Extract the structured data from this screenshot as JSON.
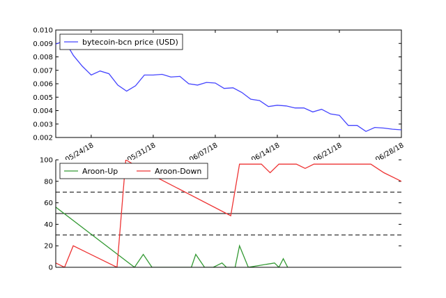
{
  "chart_data": [
    {
      "type": "line",
      "title": "",
      "xlabel": "",
      "ylabel": "",
      "ylim": [
        0.002,
        0.01
      ],
      "yticks": [
        "0.010",
        "0.009",
        "0.008",
        "0.007",
        "0.006",
        "0.005",
        "0.004",
        "0.003",
        "0.002"
      ],
      "xticks": [
        "05/24/18",
        "05/31/18",
        "06/07/18",
        "06/14/18",
        "06/21/18",
        "06/28/18"
      ],
      "xtick_days": [
        4,
        11,
        18,
        25,
        32,
        39
      ],
      "legend": {
        "placement": "top-left"
      },
      "series": [
        {
          "name": "bytecoin-bcn price (USD)",
          "color": "#4444ff",
          "x": [
            0,
            1,
            2,
            3,
            4,
            5,
            6,
            7,
            8,
            9,
            10,
            11,
            12,
            13,
            14,
            15,
            16,
            17,
            18,
            19,
            20,
            21,
            22,
            23,
            24,
            25,
            26,
            27,
            28,
            29,
            30,
            31,
            32,
            33,
            34,
            35,
            36,
            37,
            38,
            39
          ],
          "y": [
            0.00895,
            0.0092,
            0.0081,
            0.0073,
            0.00665,
            0.00695,
            0.00675,
            0.0059,
            0.00545,
            0.00585,
            0.00665,
            0.00665,
            0.0067,
            0.0065,
            0.00655,
            0.006,
            0.0059,
            0.0061,
            0.00605,
            0.00565,
            0.0057,
            0.00535,
            0.00485,
            0.00475,
            0.0043,
            0.0044,
            0.00435,
            0.0042,
            0.0042,
            0.0039,
            0.0041,
            0.00375,
            0.00365,
            0.0029,
            0.0029,
            0.00245,
            0.00275,
            0.0027,
            0.00262,
            0.00257
          ]
        }
      ]
    },
    {
      "type": "line",
      "title": "",
      "xlabel": "",
      "ylabel": "",
      "ylim": [
        0,
        100
      ],
      "yticks": [
        "100",
        "80",
        "60",
        "40",
        "20",
        "0"
      ],
      "legend": {
        "placement": "top-left"
      },
      "reference_lines": [
        {
          "y": 70,
          "style": "dashed"
        },
        {
          "y": 50,
          "style": "solid"
        },
        {
          "y": 30,
          "style": "dashed"
        }
      ],
      "series": [
        {
          "name": "Aroon-Up",
          "color": "#339933",
          "x": [
            0,
            18,
            20,
            22,
            25,
            27,
            31,
            32,
            34,
            36,
            38,
            39,
            41,
            42,
            44,
            50,
            51,
            52,
            53
          ],
          "y": [
            56,
            0,
            12,
            0,
            0,
            0,
            0,
            12,
            0,
            0,
            4,
            0,
            0,
            20,
            0,
            4,
            0,
            8,
            0
          ]
        },
        {
          "name": "Aroon-Down",
          "color": "#ee3333",
          "x": [
            0,
            2,
            4,
            14,
            16,
            21,
            40,
            42,
            47,
            49,
            51,
            53,
            55,
            57,
            59,
            61,
            72,
            75,
            79
          ],
          "y": [
            4,
            0,
            20,
            0,
            100,
            88,
            48,
            96,
            96,
            88,
            96,
            96,
            96,
            92,
            96,
            96,
            96,
            88,
            80
          ]
        }
      ]
    }
  ]
}
